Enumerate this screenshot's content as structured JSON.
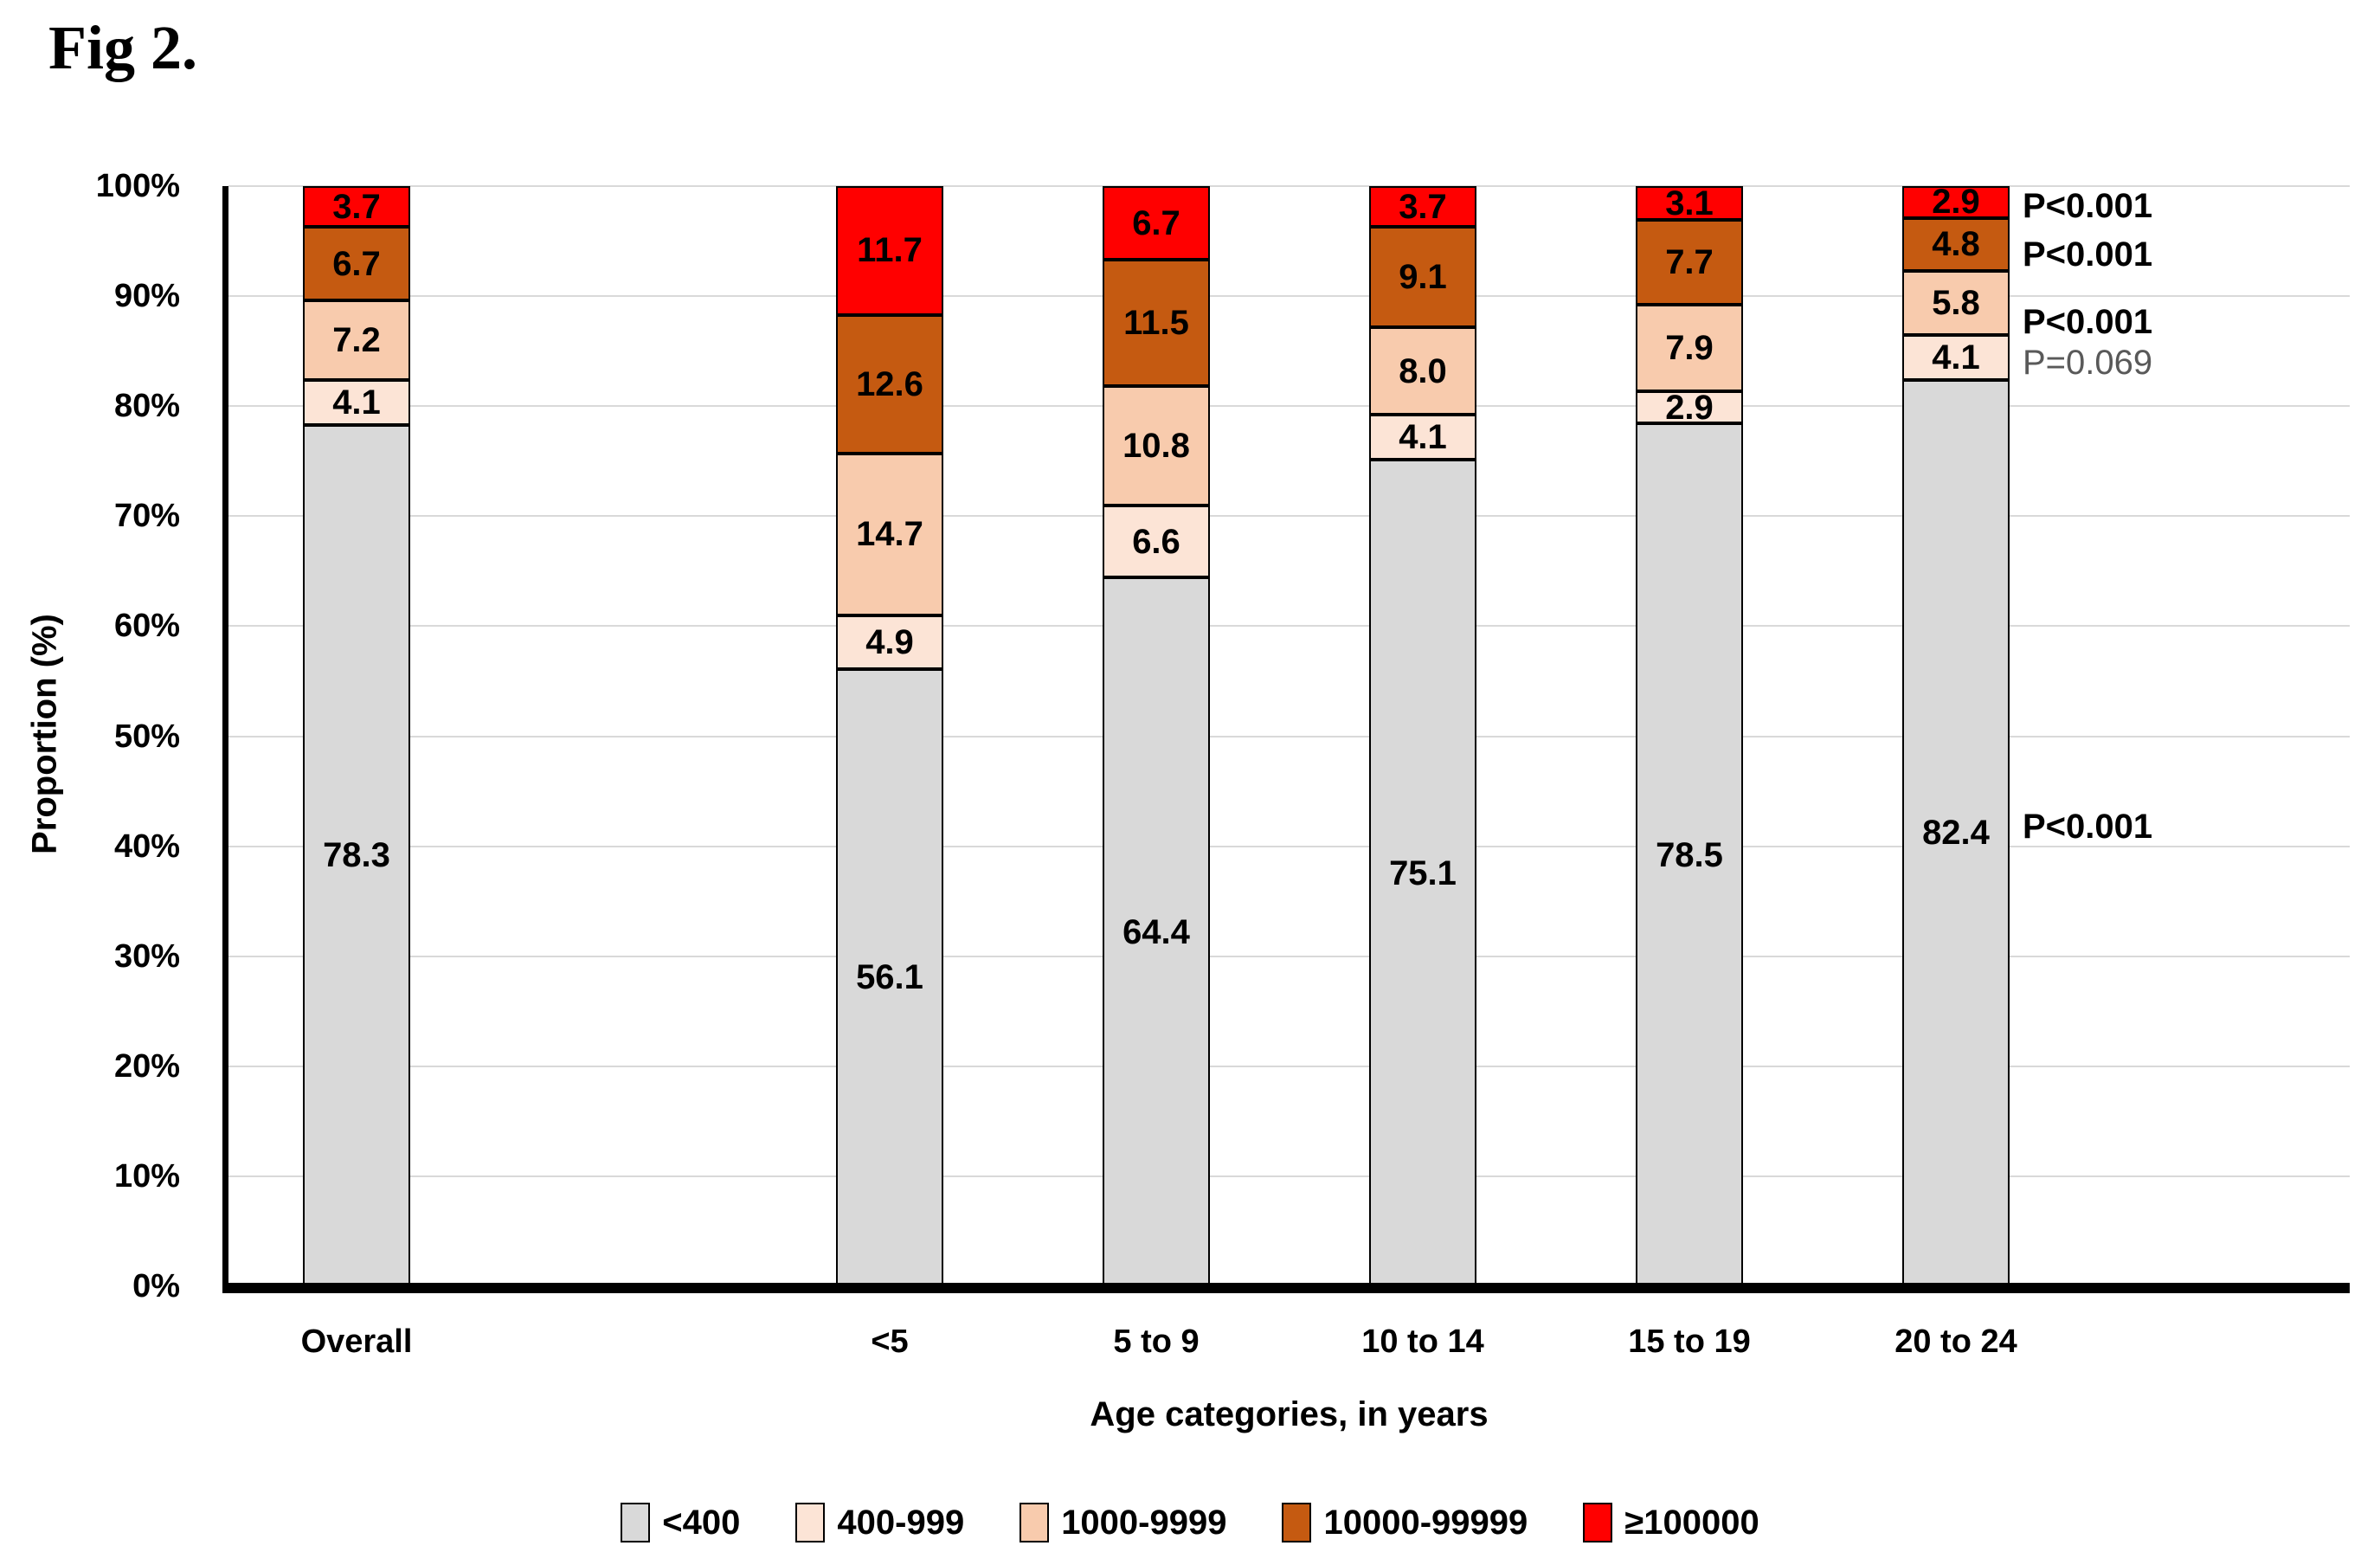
{
  "figure": {
    "label": "Fig 2."
  },
  "chart_data": {
    "type": "bar",
    "stacked": true,
    "title": "Fig 2.",
    "xlabel": "Age categories, in years",
    "ylabel": "Proportion (%)",
    "ylim": [
      0,
      100
    ],
    "ytick_labels": [
      "0%",
      "10%",
      "20%",
      "30%",
      "40%",
      "50%",
      "60%",
      "70%",
      "80%",
      "90%",
      "100%"
    ],
    "grid": true,
    "legend_position": "bottom",
    "categories": [
      "Overall",
      "<5",
      "5 to 9",
      "10 to 14",
      "15 to 19",
      "20 to 24"
    ],
    "series": [
      {
        "name": "<400",
        "color": "#D9D9D9",
        "values": [
          78.3,
          56.1,
          64.4,
          75.1,
          78.5,
          82.4
        ]
      },
      {
        "name": "400-999",
        "color": "#FCE4D6",
        "values": [
          4.1,
          4.9,
          6.6,
          4.1,
          2.9,
          4.1
        ]
      },
      {
        "name": "1000-9999",
        "color": "#F8CBAD",
        "values": [
          7.2,
          14.7,
          10.8,
          8.0,
          7.9,
          5.8
        ]
      },
      {
        "name": "10000-99999",
        "color": "#C55A11",
        "values": [
          6.7,
          12.6,
          11.5,
          9.1,
          7.7,
          4.8
        ]
      },
      {
        "name": "≥100000",
        "color": "#FF0000",
        "values": [
          3.7,
          11.7,
          6.7,
          3.7,
          3.1,
          2.9
        ]
      }
    ],
    "annotations": [
      {
        "text": "P<0.001",
        "series": "≥100000",
        "bold": true,
        "color": "#000000",
        "y_pct": 98.1
      },
      {
        "text": "P<0.001",
        "series": "10000-99999",
        "bold": true,
        "color": "#000000",
        "y_pct": 93.7
      },
      {
        "text": "P<0.001",
        "series": "1000-9999",
        "bold": true,
        "color": "#000000",
        "y_pct": 87.6
      },
      {
        "text": "P=0.069",
        "series": "400-999",
        "bold": false,
        "color": "#595959",
        "y_pct": 83.9
      },
      {
        "text": "P<0.001",
        "series": "<400",
        "bold": true,
        "color": "#000000",
        "y_pct": 41.7
      }
    ]
  }
}
